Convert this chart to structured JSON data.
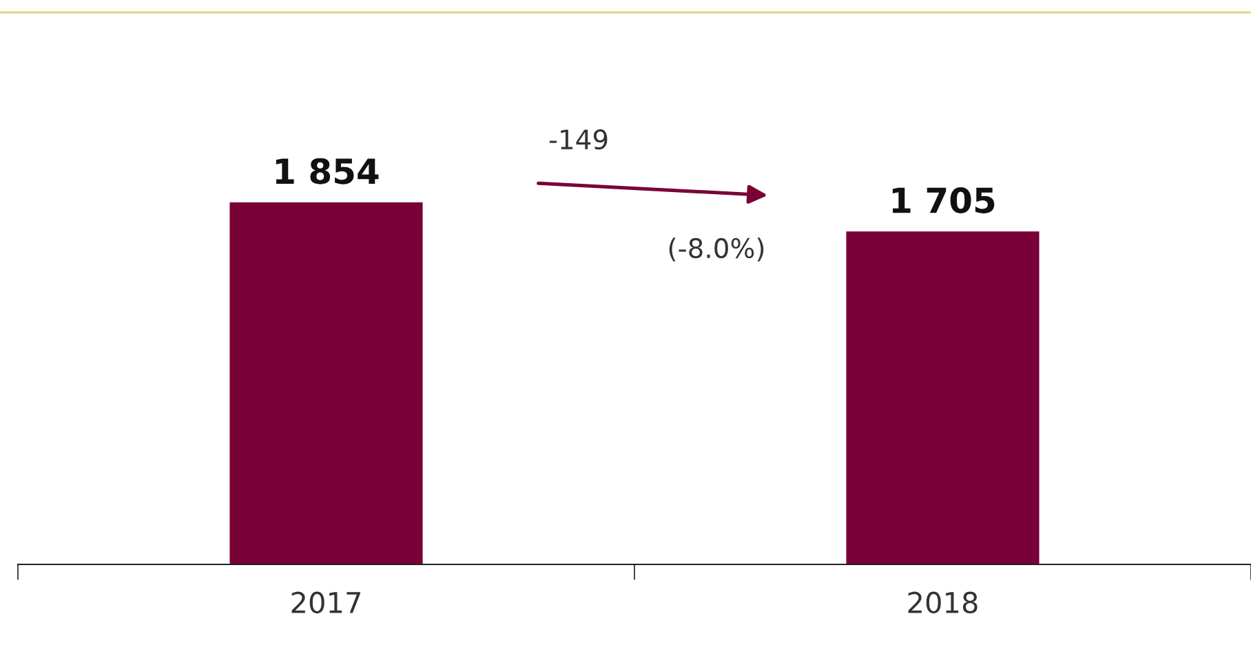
{
  "chart_data": {
    "type": "bar",
    "categories": [
      "2017",
      "2018"
    ],
    "values": [
      1854,
      1705
    ],
    "value_labels": [
      "1 854",
      "1 705"
    ],
    "color": "#7a0038",
    "annotations": [
      "-149",
      "(-8.0%)"
    ],
    "grid": false,
    "legend": false
  }
}
